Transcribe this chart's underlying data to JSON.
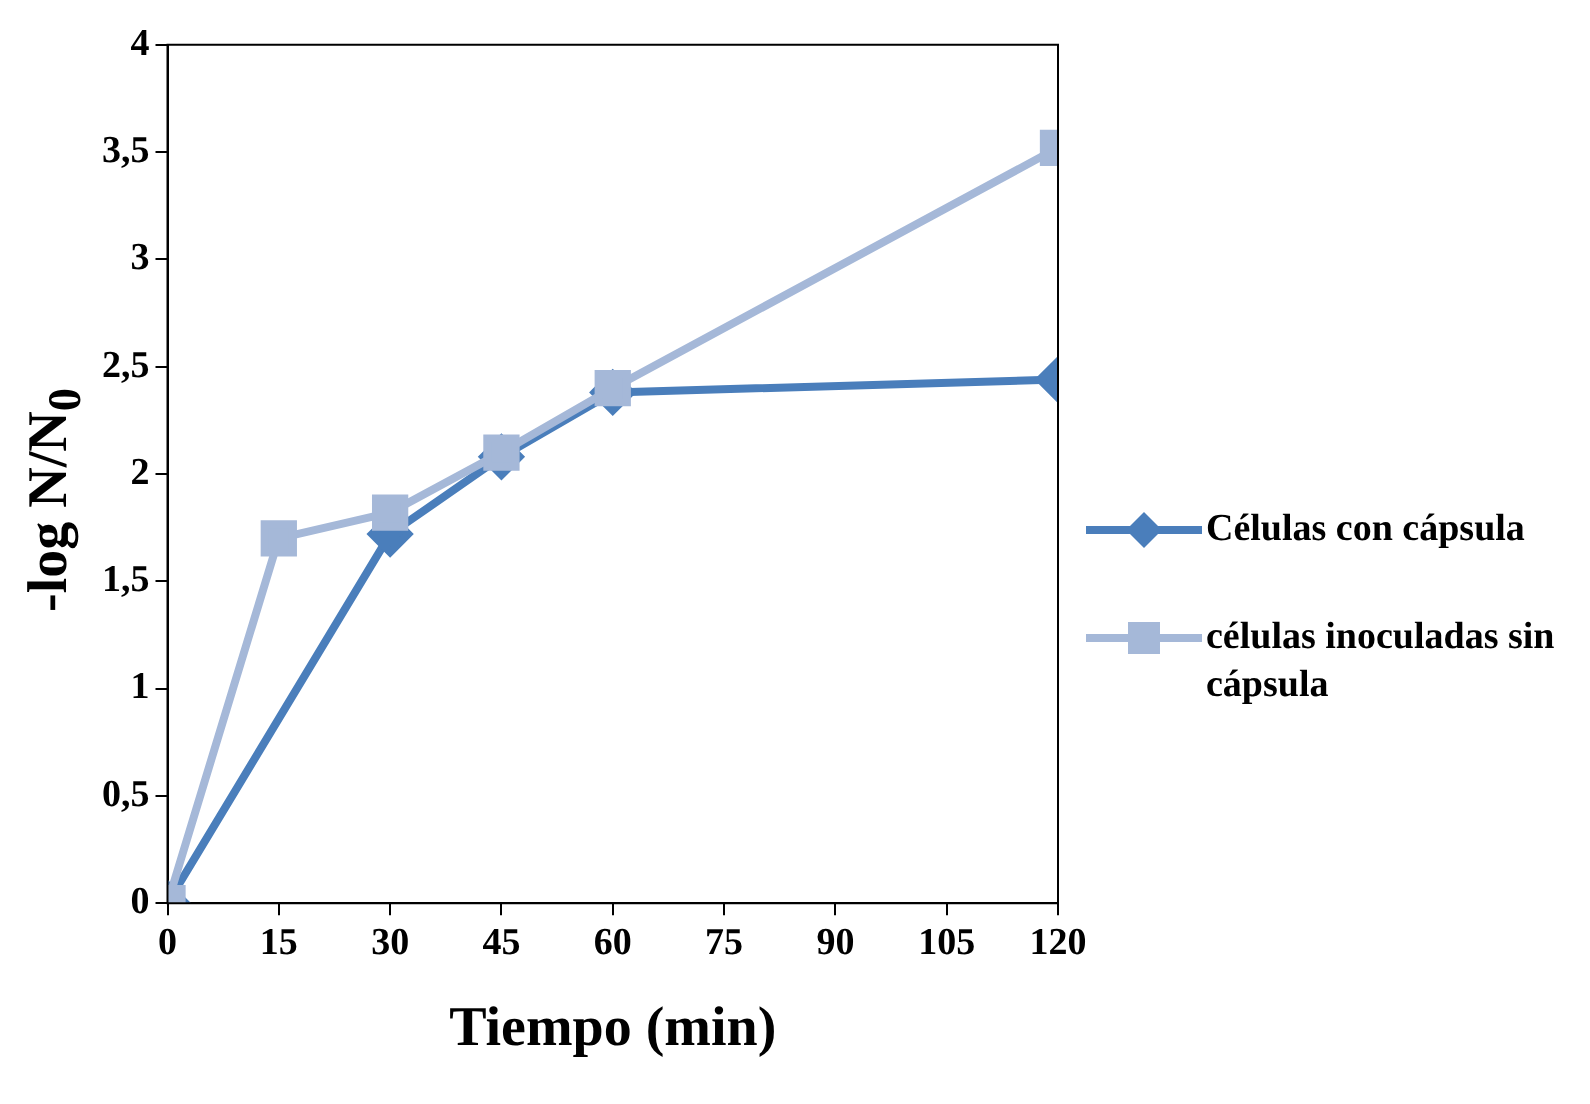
{
  "chart_data": {
    "type": "line",
    "xlabel": "Tiempo (min)",
    "ylabel": "-log N/N$_{0}$",
    "xlim": [
      0,
      120
    ],
    "xticks": [
      0,
      15,
      30,
      45,
      60,
      75,
      90,
      105,
      120
    ],
    "ylim": [
      0,
      4
    ],
    "yticks": [
      {
        "value": 0,
        "label": "0"
      },
      {
        "value": 0.5,
        "label": "0,5"
      },
      {
        "value": 1,
        "label": "1"
      },
      {
        "value": 1.5,
        "label": "1,5"
      },
      {
        "value": 2,
        "label": "2"
      },
      {
        "value": 2.5,
        "label": "2,5"
      },
      {
        "value": 3,
        "label": "3"
      },
      {
        "value": 3.5,
        "label": "3,5"
      },
      {
        "value": 4,
        "label": "4"
      }
    ],
    "grid": false,
    "legend": "right",
    "series": [
      {
        "name": "Células con cápsula",
        "color": "#4a7ebb",
        "marker": "diamond",
        "x": [
          0,
          30,
          45,
          60,
          120
        ],
        "values": [
          0,
          1.72,
          2.08,
          2.38,
          2.44
        ]
      },
      {
        "name": "células inoculadas sin cápsula",
        "color": "#a5b8d8",
        "marker": "square",
        "x": [
          0,
          15,
          30,
          45,
          60,
          120
        ],
        "values": [
          0,
          1.7,
          1.82,
          2.1,
          2.4,
          3.52
        ]
      }
    ]
  }
}
